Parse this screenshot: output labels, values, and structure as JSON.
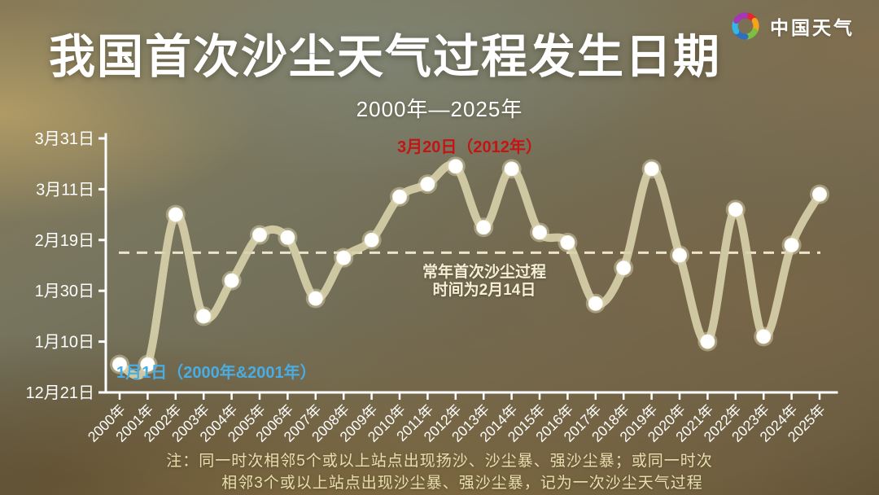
{
  "header": {
    "title": "我国首次沙尘天气过程发生日期",
    "subtitle": "2000年—2025年",
    "brand": {
      "name": "中国天气",
      "logo_colors": [
        "#e5272d",
        "#f7a21b",
        "#7cc03f",
        "#2f6fbe",
        "#33b6e6",
        "#a238b8"
      ]
    }
  },
  "chart_data": {
    "type": "line",
    "title": "我国首次沙尘天气过程发生日期",
    "subtitle": "2000年—2025年",
    "categories": [
      "2000年",
      "2001年",
      "2002年",
      "2003年",
      "2004年",
      "2005年",
      "2006年",
      "2007年",
      "2008年",
      "2009年",
      "2010年",
      "2011年",
      "2012年",
      "2013年",
      "2014年",
      "2015年",
      "2016年",
      "2017年",
      "2018年",
      "2019年",
      "2020年",
      "2021年",
      "2022年",
      "2023年",
      "2024年",
      "2025年"
    ],
    "series": [
      {
        "name": "首次沙尘天气过程发生日期",
        "dates": [
          "1月1日",
          "1月1日",
          "3月1日",
          "1月20日",
          "2月3日",
          "2月21日",
          "2月20日",
          "1月27日",
          "2月12日",
          "2月19日",
          "3月8日",
          "3月13日",
          "3月20日",
          "2月24日",
          "3月19日",
          "2月22日",
          "2月18日",
          "1月25日",
          "2月8日",
          "3月19日",
          "2月13日",
          "1月10日",
          "3月3日",
          "1月12日",
          "2月17日",
          "3月9日"
        ],
        "days_after_dec21": [
          11,
          11,
          70,
          30,
          44,
          62,
          61,
          37,
          53,
          60,
          77,
          82,
          89,
          65,
          88,
          63,
          59,
          35,
          49,
          88,
          54,
          20,
          72,
          22,
          58,
          78
        ]
      }
    ],
    "y_axis": {
      "tick_labels": [
        "3月31日",
        "3月11日",
        "2月19日",
        "1月30日",
        "1月10日",
        "12月21日"
      ],
      "tick_days_after_dec21": [
        100,
        80,
        60,
        40,
        20,
        0
      ],
      "range_days_after_dec21": [
        0,
        100
      ],
      "grid": false
    },
    "reference_line": {
      "label_line1": "常年首次沙尘过程",
      "label_line2": "时间为2月14日",
      "date": "2月14日",
      "day_after_dec21": 55,
      "style": "dashed"
    },
    "annotations": [
      {
        "id": "max",
        "text": "3月20日（2012年）",
        "color": "#c41515"
      },
      {
        "id": "min",
        "text": "1月1日（2000年&2001年）",
        "color": "#49ade4"
      }
    ],
    "line_color": "#d8d1ab",
    "point_color": "#ffffff",
    "axis_color": "#ffffff",
    "legend": "none"
  },
  "footer": {
    "note_line1": "注：同一时次相邻5个或以上站点出现扬沙、沙尘暴、强沙尘暴；或同一时次",
    "note_line2": "相邻3个或以上站点出现沙尘暴、强沙尘暴，记为一次沙尘天气过程"
  }
}
